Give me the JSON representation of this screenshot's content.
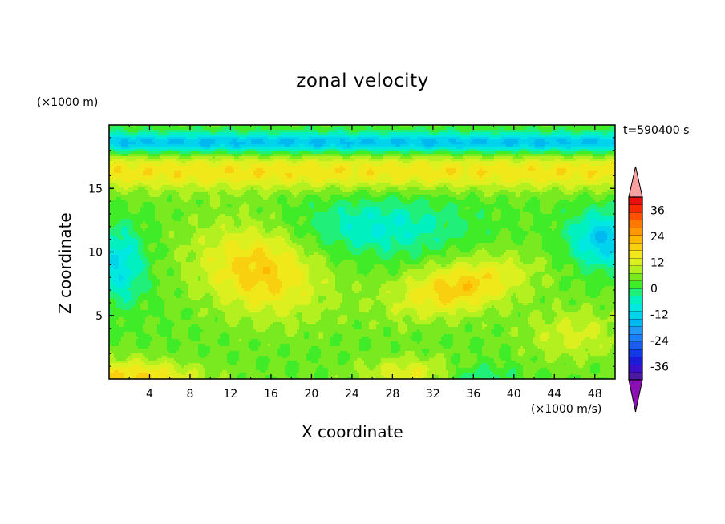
{
  "chart_data": {
    "type": "heatmap",
    "title": "zonal velocity",
    "xlabel": "X coordinate",
    "ylabel": "Z coordinate",
    "x_unit_label": "(×1000 m/s)",
    "y_unit_label": "(×1000 m)",
    "time_label": "t=590400 s",
    "xlim": [
      0,
      50
    ],
    "ylim": [
      0,
      20
    ],
    "x_ticks": [
      4,
      8,
      12,
      16,
      20,
      24,
      28,
      32,
      36,
      40,
      44,
      48
    ],
    "x_tick_labels": [
      "4",
      "8",
      "12",
      "16",
      "20",
      "24",
      "28",
      "32",
      "36",
      "40",
      "44",
      "48"
    ],
    "y_ticks": [
      5,
      10,
      15
    ],
    "y_tick_labels": [
      "5",
      "10",
      "15"
    ],
    "grid": false,
    "colorbar": {
      "levels": [
        -42,
        -39,
        -36,
        -33,
        -30,
        -27,
        -24,
        -21,
        -18,
        -15,
        -12,
        -9,
        -6,
        -3,
        0,
        3,
        6,
        9,
        12,
        15,
        18,
        21,
        24,
        27,
        30,
        33,
        36,
        39,
        42
      ],
      "tick_values": [
        -36,
        -24,
        -12,
        0,
        12,
        24,
        36
      ],
      "tick_labels": [
        "-36",
        "-24",
        "-12",
        "0",
        "12",
        "24",
        "36"
      ],
      "colors": [
        "#4a1aa0",
        "#3a10c8",
        "#1c1cd8",
        "#1238e8",
        "#1a5cf0",
        "#1e7ef5",
        "#2498f5",
        "#00b8f0",
        "#00d4ec",
        "#00e8e0",
        "#00f0c0",
        "#20f07a",
        "#40ec28",
        "#7aea20",
        "#b2f020",
        "#dcf020",
        "#f0e818",
        "#f8d010",
        "#ffb800",
        "#ff9800",
        "#ff7800",
        "#ff5000",
        "#f82800",
        "#e81010"
      ],
      "under_color": "#8a10b4",
      "over_color": "#f8a0a0"
    },
    "field_description_values": {
      "levels_used_in_field_m_per_s": [
        -18,
        -12,
        -6,
        0,
        6,
        12
      ],
      "features": [
        {
          "region": "upper band z 16-17",
          "value_range": [
            3,
            9
          ]
        },
        {
          "region": "top z 18-19",
          "value_range": [
            -15,
            -9
          ]
        },
        {
          "region": "left bulge x 10-22, z 6-12",
          "value_range": [
            6,
            12
          ]
        },
        {
          "region": "right bulge x 30-40, z 6-10",
          "value_range": [
            6,
            12
          ]
        },
        {
          "region": "central core x 20-34, z 11-14",
          "value_range": [
            -9,
            -3
          ]
        },
        {
          "region": "right edge x 46-50, z 10-13",
          "value_range": [
            -18,
            -12
          ]
        },
        {
          "region": "bottom left x 0-10, z 0-2",
          "value_range": [
            6,
            12
          ]
        }
      ]
    }
  }
}
